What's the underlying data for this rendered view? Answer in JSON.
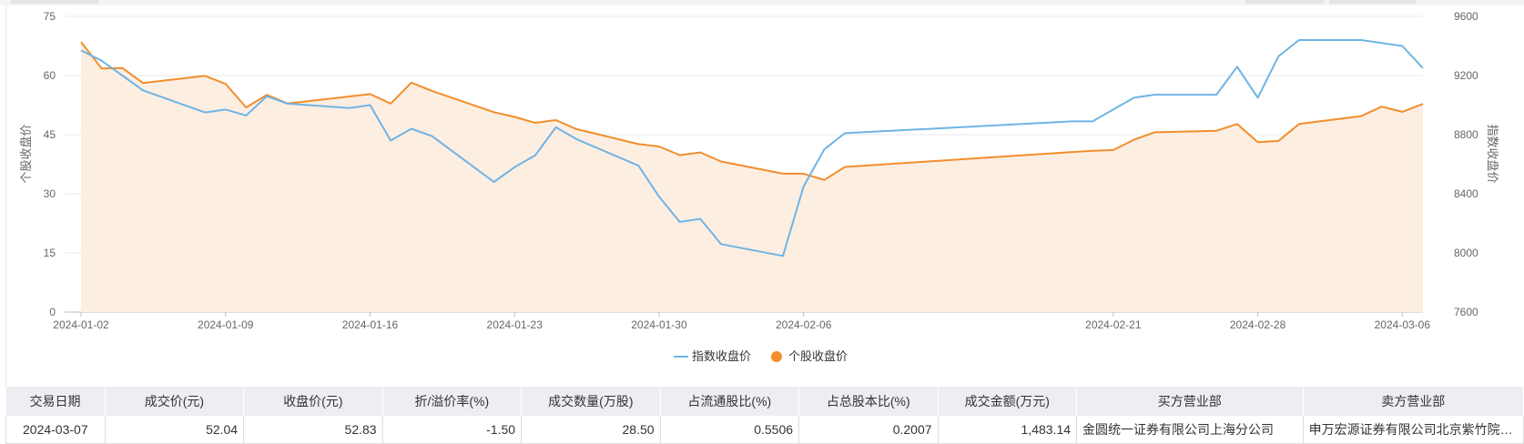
{
  "chart_data": {
    "type": "line",
    "x_ticks": [
      "2024-01-02",
      "2024-01-09",
      "2024-01-16",
      "2024-01-23",
      "2024-01-30",
      "2024-02-06",
      "2024-02-21",
      "2024-02-28",
      "2024-03-06"
    ],
    "x": [
      "2024-01-02",
      "2024-01-03",
      "2024-01-04",
      "2024-01-05",
      "2024-01-08",
      "2024-01-09",
      "2024-01-10",
      "2024-01-11",
      "2024-01-12",
      "2024-01-15",
      "2024-01-16",
      "2024-01-17",
      "2024-01-18",
      "2024-01-19",
      "2024-01-22",
      "2024-01-23",
      "2024-01-24",
      "2024-01-25",
      "2024-01-26",
      "2024-01-29",
      "2024-01-30",
      "2024-01-31",
      "2024-02-01",
      "2024-02-02",
      "2024-02-05",
      "2024-02-06",
      "2024-02-07",
      "2024-02-08",
      "2024-02-19",
      "2024-02-20",
      "2024-02-21",
      "2024-02-22",
      "2024-02-23",
      "2024-02-26",
      "2024-02-27",
      "2024-02-28",
      "2024-02-29",
      "2024-03-01",
      "2024-03-04",
      "2024-03-05",
      "2024-03-06",
      "2024-03-07"
    ],
    "series": [
      {
        "name": "指数收盘价",
        "axis": "right",
        "color": "#6fb4e3",
        "values": [
          9370,
          9300,
          9200,
          9100,
          8950,
          8970,
          8930,
          9060,
          9010,
          8980,
          9000,
          8760,
          8840,
          8790,
          8480,
          8580,
          8660,
          8850,
          8770,
          8590,
          8380,
          8210,
          8230,
          8060,
          7980,
          8450,
          8700,
          8810,
          8890,
          8890,
          8970,
          9050,
          9070,
          9070,
          9260,
          9050,
          9330,
          9440,
          9440,
          9420,
          9400,
          9250
        ]
      },
      {
        "name": "个股收盘价",
        "axis": "left",
        "color": "#f28e2b",
        "values": [
          68.5,
          61.8,
          61.9,
          58.1,
          59.9,
          57.9,
          51.9,
          55.1,
          52.9,
          54.7,
          55.3,
          52.9,
          58.2,
          56.1,
          50.7,
          49.5,
          48.0,
          48.7,
          46.4,
          42.6,
          42.0,
          39.8,
          40.5,
          38.2,
          35.1,
          35.1,
          33.5,
          36.8,
          40.6,
          40.9,
          41.1,
          43.7,
          45.6,
          46.0,
          47.7,
          43.1,
          43.4,
          47.7,
          49.7,
          52.1,
          50.8,
          52.8
        ]
      }
    ],
    "y_left": {
      "label": "个股收盘价",
      "lim": [
        0,
        75
      ],
      "ticks": [
        "0",
        "15",
        "30",
        "45",
        "60",
        "75"
      ]
    },
    "y_right": {
      "label": "指数收盘价",
      "lim": [
        7600,
        9600
      ],
      "ticks": [
        "7600",
        "8000",
        "8400",
        "8800",
        "9200",
        "9600"
      ]
    },
    "legend": {
      "placement": "bottom-center",
      "items": [
        "指数收盘价",
        "个股收盘价"
      ]
    },
    "grid": true,
    "area_fill_color": "#fdeee2",
    "title": ""
  },
  "table": {
    "headers": [
      "交易日期",
      "成交价(元)",
      "收盘价(元)",
      "折/溢价率(%)",
      "成交数量(万股)",
      "占流通股比(%)",
      "占总股本比(%)",
      "成交金额(万元)",
      "买方营业部",
      "卖方营业部"
    ],
    "rows": [
      [
        "2024-03-07",
        "52.04",
        "52.83",
        "-1.50",
        "28.50",
        "0.5506",
        "0.2007",
        "1,483.14",
        "金圆统一证券有限公司上海分公司",
        "申万宏源证券有限公司北京紫竹院路证券营业部"
      ]
    ]
  }
}
